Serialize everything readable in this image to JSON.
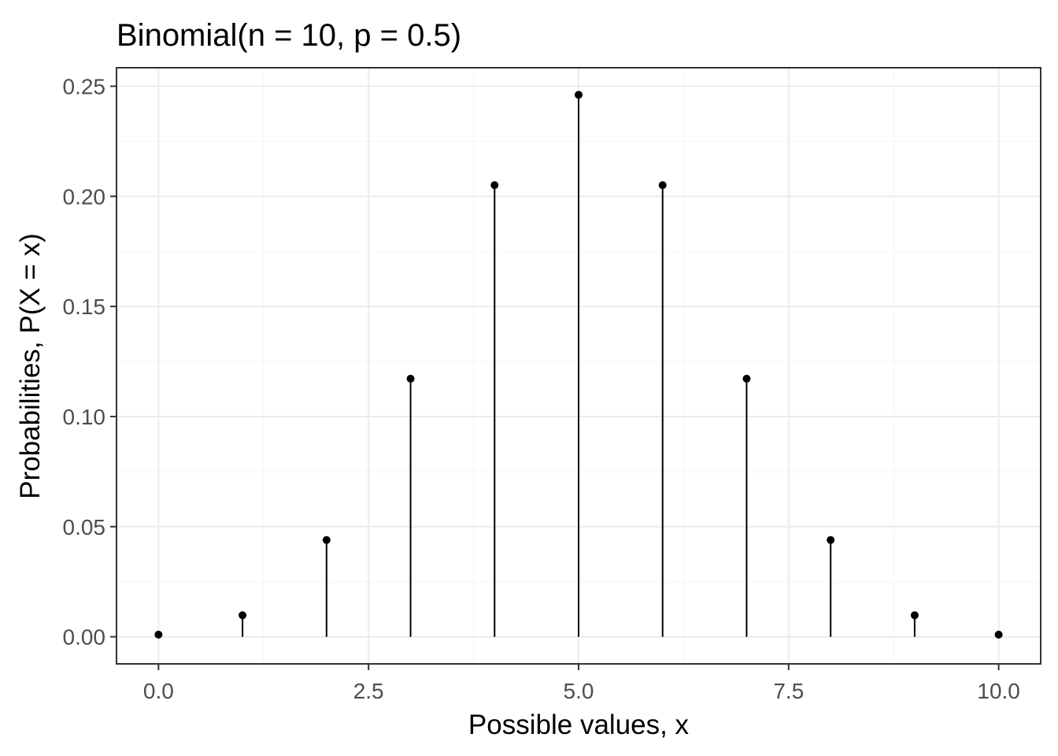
{
  "chart_data": {
    "type": "lollipop",
    "title": "Binomial(n = 10, p = 0.5)",
    "xlabel": "Possible values, x",
    "ylabel": "Probabilities, P(X = x)",
    "x": [
      0,
      1,
      2,
      3,
      4,
      5,
      6,
      7,
      8,
      9,
      10
    ],
    "values": [
      0.000977,
      0.009766,
      0.043945,
      0.117188,
      0.205078,
      0.246094,
      0.205078,
      0.117188,
      0.043945,
      0.009766,
      0.000977
    ],
    "xlim": [
      -0.5,
      10.5
    ],
    "ylim": [
      -0.0123,
      0.2584
    ],
    "x_ticks": [
      0.0,
      2.5,
      5.0,
      7.5,
      10.0
    ],
    "x_tick_labels": [
      "0.0",
      "2.5",
      "5.0",
      "7.5",
      "10.0"
    ],
    "y_ticks": [
      0.0,
      0.05,
      0.1,
      0.15,
      0.2,
      0.25
    ],
    "y_tick_labels": [
      "0.00",
      "0.05",
      "0.10",
      "0.15",
      "0.20",
      "0.25"
    ],
    "grid": true,
    "legend": "none",
    "colors": {
      "mark": "#000000",
      "panel_border": "#333333",
      "grid_major": "#ebebeb",
      "grid_minor": "#f5f5f5",
      "tick_label": "#4d4d4d"
    }
  }
}
